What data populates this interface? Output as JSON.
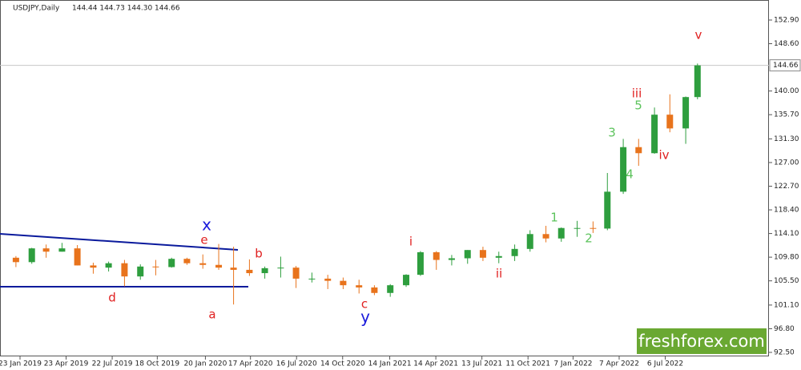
{
  "chart_data": {
    "type": "candlestick",
    "title": "USDJPY,Daily",
    "subtitle": "144.44 144.73 144.30 144.66",
    "watermark": "freshforex.com",
    "up_color": "#2e9e3e",
    "down_color": "#e8731c",
    "last_price": 144.66,
    "x": [
      "2019-01-15",
      "2019-02-15",
      "2019-03-15",
      "2019-04-15",
      "2019-05-15",
      "2019-06-15",
      "2019-07-15",
      "2019-08-15",
      "2019-09-15",
      "2019-10-15",
      "2019-11-15",
      "2019-12-15",
      "2020-01-15",
      "2020-02-15",
      "2020-03-15",
      "2020-04-15",
      "2020-05-15",
      "2020-06-15",
      "2020-07-15",
      "2020-08-15",
      "2020-09-15",
      "2020-10-15",
      "2020-11-15",
      "2020-12-15",
      "2021-01-15",
      "2021-02-15",
      "2021-03-15",
      "2021-04-15",
      "2021-05-15",
      "2021-06-15",
      "2021-07-15",
      "2021-08-15",
      "2021-09-15",
      "2021-10-15",
      "2021-11-15",
      "2021-12-15",
      "2022-01-15",
      "2022-02-15",
      "2022-03-15",
      "2022-04-15",
      "2022-05-15",
      "2022-06-15",
      "2022-07-15",
      "2022-08-15",
      "2022-09-07"
    ],
    "open": [
      109.7,
      108.9,
      111.4,
      110.8,
      111.4,
      108.3,
      107.9,
      108.7,
      106.3,
      108.1,
      108.0,
      109.5,
      108.7,
      108.4,
      107.9,
      107.5,
      106.9,
      107.8,
      107.9,
      105.9,
      105.9,
      105.5,
      104.7,
      104.3,
      103.3,
      104.7,
      106.6,
      110.7,
      109.3,
      109.6,
      111.1,
      109.7,
      110.0,
      111.3,
      114.0,
      113.2,
      115.1,
      115.1,
      115.0,
      121.7,
      129.8,
      128.7,
      135.7,
      133.2,
      138.9
    ],
    "high": [
      110.0,
      111.5,
      112.1,
      112.4,
      112.0,
      108.8,
      109.0,
      109.3,
      108.5,
      109.3,
      109.7,
      109.7,
      110.3,
      112.2,
      111.7,
      109.4,
      108.1,
      109.9,
      108.2,
      107.0,
      106.6,
      106.1,
      105.7,
      104.7,
      104.9,
      106.7,
      110.9,
      110.9,
      110.2,
      111.1,
      111.7,
      110.8,
      112.1,
      114.7,
      115.5,
      115.2,
      116.4,
      116.3,
      125.1,
      131.3,
      131.3,
      137.0,
      139.4,
      139.0,
      144.99
    ],
    "low": [
      108.0,
      108.6,
      109.7,
      110.8,
      108.3,
      106.8,
      107.2,
      104.5,
      105.7,
      106.5,
      107.9,
      108.4,
      107.7,
      107.5,
      101.2,
      106.4,
      105.9,
      106.1,
      104.2,
      105.2,
      104.0,
      104.0,
      103.2,
      102.9,
      102.6,
      104.4,
      106.4,
      107.5,
      108.3,
      108.6,
      109.1,
      108.7,
      109.1,
      110.8,
      112.5,
      112.6,
      113.5,
      114.2,
      114.7,
      121.3,
      126.4,
      128.6,
      132.5,
      130.4,
      138.5
    ],
    "close": [
      108.9,
      111.4,
      110.8,
      111.4,
      108.3,
      107.9,
      108.7,
      106.3,
      108.1,
      108.0,
      109.5,
      108.7,
      108.4,
      107.9,
      107.5,
      106.9,
      107.8,
      107.9,
      105.9,
      105.9,
      105.5,
      104.7,
      104.3,
      103.3,
      104.7,
      106.6,
      110.7,
      109.3,
      109.6,
      111.1,
      109.7,
      110.0,
      111.3,
      114.0,
      113.2,
      115.1,
      115.1,
      115.0,
      121.7,
      129.8,
      128.7,
      135.7,
      133.2,
      138.9,
      144.66
    ],
    "ylim": [
      91.77,
      156.54
    ],
    "yticks": [
      {
        "value": 152.9,
        "label": "152.90"
      },
      {
        "value": 148.6,
        "label": "148.60"
      },
      {
        "value": 140,
        "label": "140.00"
      },
      {
        "value": 135.7,
        "label": "135.70"
      },
      {
        "value": 131.3,
        "label": "131.30"
      },
      {
        "value": 127,
        "label": "127.00"
      },
      {
        "value": 122.7,
        "label": "122.70"
      },
      {
        "value": 118.4,
        "label": "118.40"
      },
      {
        "value": 114.1,
        "label": "114.10"
      },
      {
        "value": 109.8,
        "label": "109.80"
      },
      {
        "value": 105.5,
        "label": "105.50"
      },
      {
        "value": 101.1,
        "label": "101.10"
      },
      {
        "value": 96.8,
        "label": "96.80"
      },
      {
        "value": 92.5,
        "label": "92.50"
      }
    ],
    "xticks": [
      {
        "value": "2019-01-23",
        "label": "23 Jan 2019"
      },
      {
        "value": "2019-04-23",
        "label": "23 Apr 2019"
      },
      {
        "value": "2019-07-22",
        "label": "22 Jul 2019"
      },
      {
        "value": "2019-10-18",
        "label": "18 Oct 2019"
      },
      {
        "value": "2020-01-20",
        "label": "20 Jan 2020"
      },
      {
        "value": "2020-04-17",
        "label": "17 Apr 2020"
      },
      {
        "value": "2020-07-16",
        "label": "16 Jul 2020"
      },
      {
        "value": "2020-10-14",
        "label": "14 Oct 2020"
      },
      {
        "value": "2021-01-14",
        "label": "14 Jan 2021"
      },
      {
        "value": "2021-04-14",
        "label": "14 Apr 2021"
      },
      {
        "value": "2021-07-13",
        "label": "13 Jul 2021"
      },
      {
        "value": "2021-10-11",
        "label": "11 Oct 2021"
      },
      {
        "value": "2022-01-07",
        "label": "7 Jan 2022"
      },
      {
        "value": "2022-04-07",
        "label": "7 Apr 2022"
      },
      {
        "value": "2022-07-06",
        "label": "6 Jul 2022"
      }
    ],
    "annotations": [
      {
        "text": "x",
        "color": "#1a1adb"
      },
      {
        "text": "e",
        "color": "#e02020"
      },
      {
        "text": "b",
        "color": "#e02020"
      },
      {
        "text": "d",
        "color": "#e02020"
      },
      {
        "text": "a",
        "color": "#e02020"
      },
      {
        "text": "c",
        "color": "#e02020"
      },
      {
        "text": "y",
        "color": "#1a1adb"
      },
      {
        "text": "i",
        "color": "#e02020"
      },
      {
        "text": "ii",
        "color": "#e02020"
      },
      {
        "text": "iii",
        "color": "#e02020"
      },
      {
        "text": "iv",
        "color": "#e02020"
      },
      {
        "text": "v",
        "color": "#e02020"
      },
      {
        "text": "1",
        "color": "#5cc35c"
      },
      {
        "text": "2",
        "color": "#5cc35c"
      },
      {
        "text": "3",
        "color": "#5cc35c"
      },
      {
        "text": "4",
        "color": "#5cc35c"
      },
      {
        "text": "5",
        "color": "#5cc35c"
      }
    ]
  }
}
